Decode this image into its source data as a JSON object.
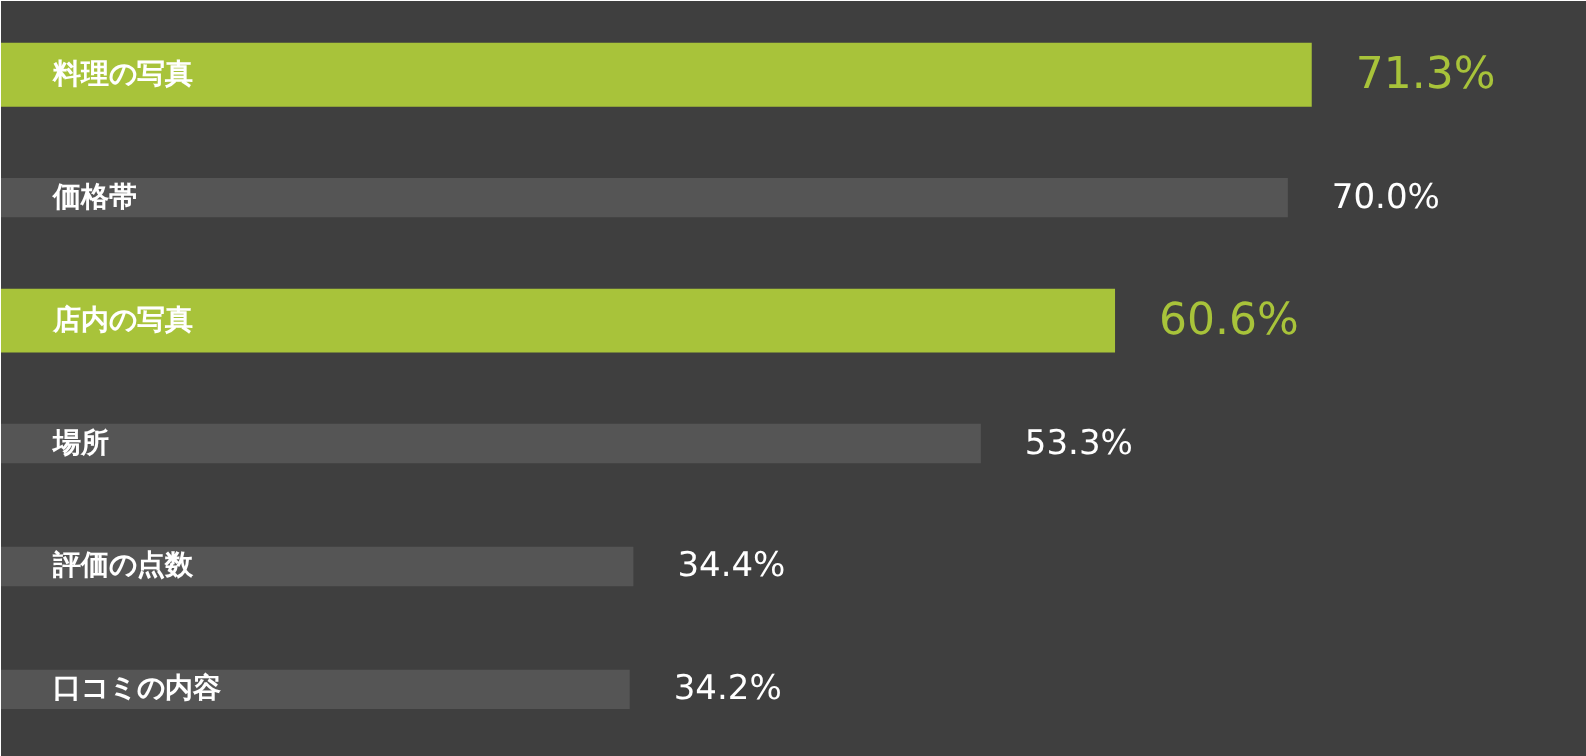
{
  "chart_data": {
    "type": "bar",
    "orientation": "horizontal",
    "categories": [
      "料理の写真",
      "価格帯",
      "店内の写真",
      "場所",
      "評価の点数",
      "口コミの内容"
    ],
    "values": [
      71.3,
      70.0,
      60.6,
      53.3,
      34.4,
      34.2
    ],
    "colors": [
      "#a8c33a",
      "#555555",
      "#a8c33a",
      "#555555",
      "#555555",
      "#555555"
    ],
    "value_labels": [
      "71.3%",
      "70.0%",
      "60.6%",
      "53.3%",
      "34.4%",
      "34.2%"
    ]
  }
}
